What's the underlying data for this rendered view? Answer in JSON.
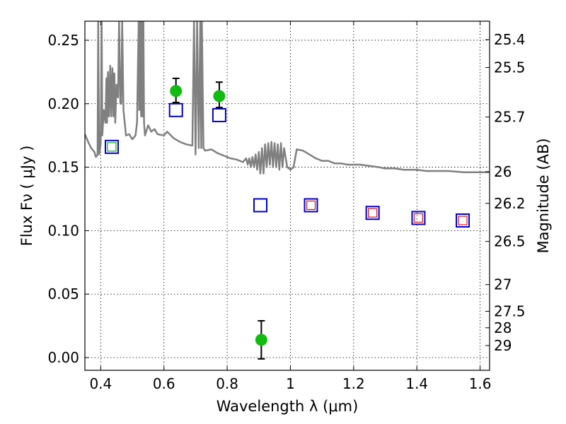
{
  "chart_data": {
    "type": "scatter",
    "xlabel": "Wavelength  λ (μm)",
    "ylabel": "Flux  Fν  ( μJy )",
    "ylabel_right": "Magnitude (AB)",
    "xlim": [
      0.35,
      1.63
    ],
    "ylim": [
      -0.01,
      0.265
    ],
    "grid": true,
    "x_ticks": [
      0.4,
      0.6,
      0.8,
      1.0,
      1.2,
      1.4,
      1.6
    ],
    "x_tick_labels": [
      "0.4",
      "0.6",
      "0.8",
      "1",
      "1.2",
      "1.4",
      "1.6"
    ],
    "y_ticks": [
      0.0,
      0.05,
      0.1,
      0.15,
      0.2,
      0.25
    ],
    "y_tick_labels": [
      "0.00",
      "0.05",
      "0.10",
      "0.15",
      "0.20",
      "0.25"
    ],
    "right_ticks": [
      {
        "label": "25.4",
        "flux": 0.2505
      },
      {
        "label": "25.5",
        "flux": 0.2285
      },
      {
        "label": "25.7",
        "flux": 0.1895
      },
      {
        "label": "26",
        "flux": 0.1465
      },
      {
        "label": "26.2",
        "flux": 0.1215
      },
      {
        "label": "26.5",
        "flux": 0.0915
      },
      {
        "label": "27",
        "flux": 0.0575
      },
      {
        "label": "27.5",
        "flux": 0.0365
      },
      {
        "label": "28",
        "flux": 0.0235
      },
      {
        "label": "29",
        "flux": 0.0095
      }
    ],
    "series": [
      {
        "kind": "line",
        "color": "#808080",
        "points": [
          [
            0.35,
            0.176
          ],
          [
            0.36,
            0.17
          ],
          [
            0.37,
            0.165
          ],
          [
            0.38,
            0.162
          ],
          [
            0.385,
            0.158
          ],
          [
            0.39,
            0.16
          ],
          [
            0.392,
            0.265
          ],
          [
            0.395,
            0.16
          ],
          [
            0.4,
            0.168
          ],
          [
            0.403,
            0.265
          ],
          [
            0.405,
            0.175
          ],
          [
            0.41,
            0.195
          ],
          [
            0.415,
            0.185
          ],
          [
            0.418,
            0.22
          ],
          [
            0.42,
            0.185
          ],
          [
            0.423,
            0.225
          ],
          [
            0.426,
            0.19
          ],
          [
            0.43,
            0.23
          ],
          [
            0.433,
            0.19
          ],
          [
            0.437,
            0.228
          ],
          [
            0.44,
            0.19
          ],
          [
            0.443,
            0.224
          ],
          [
            0.446,
            0.185
          ],
          [
            0.45,
            0.215
          ],
          [
            0.455,
            0.205
          ],
          [
            0.458,
            0.265
          ],
          [
            0.462,
            0.2
          ],
          [
            0.465,
            0.2
          ],
          [
            0.468,
            0.265
          ],
          [
            0.472,
            0.195
          ],
          [
            0.48,
            0.175
          ],
          [
            0.49,
            0.176
          ],
          [
            0.5,
            0.172
          ],
          [
            0.51,
            0.175
          ],
          [
            0.515,
            0.185
          ],
          [
            0.52,
            0.265
          ],
          [
            0.522,
            0.195
          ],
          [
            0.525,
            0.265
          ],
          [
            0.528,
            0.19
          ],
          [
            0.53,
            0.265
          ],
          [
            0.532,
            0.19
          ],
          [
            0.535,
            0.265
          ],
          [
            0.537,
            0.185
          ],
          [
            0.54,
            0.175
          ],
          [
            0.55,
            0.183
          ],
          [
            0.56,
            0.178
          ],
          [
            0.57,
            0.18
          ],
          [
            0.58,
            0.176
          ],
          [
            0.6,
            0.175
          ],
          [
            0.61,
            0.178
          ],
          [
            0.63,
            0.173
          ],
          [
            0.65,
            0.17
          ],
          [
            0.67,
            0.168
          ],
          [
            0.69,
            0.167
          ],
          [
            0.695,
            0.265
          ],
          [
            0.7,
            0.16
          ],
          [
            0.705,
            0.265
          ],
          [
            0.71,
            0.165
          ],
          [
            0.715,
            0.265
          ],
          [
            0.718,
            0.165
          ],
          [
            0.72,
            0.265
          ],
          [
            0.725,
            0.165
          ],
          [
            0.73,
            0.163
          ],
          [
            0.75,
            0.164
          ],
          [
            0.77,
            0.161
          ],
          [
            0.79,
            0.159
          ],
          [
            0.81,
            0.157
          ],
          [
            0.83,
            0.156
          ],
          [
            0.85,
            0.154
          ],
          [
            0.86,
            0.157
          ],
          [
            0.865,
            0.152
          ],
          [
            0.87,
            0.157
          ],
          [
            0.875,
            0.15
          ],
          [
            0.88,
            0.158
          ],
          [
            0.885,
            0.15
          ],
          [
            0.89,
            0.16
          ],
          [
            0.895,
            0.148
          ],
          [
            0.9,
            0.162
          ],
          [
            0.905,
            0.145
          ],
          [
            0.91,
            0.165
          ],
          [
            0.915,
            0.145
          ],
          [
            0.92,
            0.168
          ],
          [
            0.925,
            0.15
          ],
          [
            0.93,
            0.169
          ],
          [
            0.935,
            0.152
          ],
          [
            0.94,
            0.17
          ],
          [
            0.945,
            0.15
          ],
          [
            0.95,
            0.169
          ],
          [
            0.955,
            0.15
          ],
          [
            0.96,
            0.168
          ],
          [
            0.965,
            0.148
          ],
          [
            0.97,
            0.169
          ],
          [
            0.975,
            0.15
          ],
          [
            0.98,
            0.165
          ],
          [
            0.99,
            0.15
          ],
          [
            1.0,
            0.148
          ],
          [
            1.01,
            0.15
          ],
          [
            1.02,
            0.164
          ],
          [
            1.04,
            0.163
          ],
          [
            1.06,
            0.16
          ],
          [
            1.08,
            0.157
          ],
          [
            1.1,
            0.155
          ],
          [
            1.12,
            0.155
          ],
          [
            1.14,
            0.153
          ],
          [
            1.16,
            0.153
          ],
          [
            1.18,
            0.152
          ],
          [
            1.2,
            0.152
          ],
          [
            1.22,
            0.152
          ],
          [
            1.25,
            0.151
          ],
          [
            1.28,
            0.15
          ],
          [
            1.3,
            0.149
          ],
          [
            1.33,
            0.149
          ],
          [
            1.36,
            0.148
          ],
          [
            1.4,
            0.148
          ],
          [
            1.43,
            0.147
          ],
          [
            1.46,
            0.147
          ],
          [
            1.5,
            0.147
          ],
          [
            1.55,
            0.146
          ],
          [
            1.58,
            0.146
          ],
          [
            1.63,
            0.146
          ]
        ]
      },
      {
        "kind": "points",
        "marker": "square",
        "color": "#0000cc",
        "points": [
          [
            0.435,
            0.166
          ],
          [
            0.638,
            0.195
          ],
          [
            0.775,
            0.191
          ],
          [
            0.905,
            0.12
          ],
          [
            1.065,
            0.12
          ],
          [
            1.26,
            0.114
          ],
          [
            1.405,
            0.11
          ],
          [
            1.545,
            0.108
          ]
        ]
      },
      {
        "kind": "points",
        "marker": "square-small",
        "color": "#22aa22",
        "points": [
          [
            0.435,
            0.166
          ]
        ]
      },
      {
        "kind": "points",
        "marker": "square-small",
        "color": "#dd2222",
        "points": [
          [
            1.065,
            0.12
          ],
          [
            1.26,
            0.114
          ],
          [
            1.405,
            0.11
          ],
          [
            1.545,
            0.108
          ]
        ]
      },
      {
        "kind": "errorbar",
        "marker": "circle",
        "color": "#11bb11",
        "points": [
          {
            "x": 0.638,
            "y": 0.21,
            "lo": 0.201,
            "hi": 0.22
          },
          {
            "x": 0.775,
            "y": 0.206,
            "lo": 0.197,
            "hi": 0.217
          },
          {
            "x": 0.908,
            "y": 0.014,
            "lo": -0.001,
            "hi": 0.029
          }
        ]
      }
    ]
  }
}
